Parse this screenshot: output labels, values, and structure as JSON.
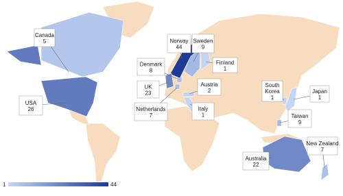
{
  "map": {
    "countries": [
      {
        "name": "Canada",
        "value": 5
      },
      {
        "name": "USA",
        "value": 26
      },
      {
        "name": "Denmark",
        "value": 8
      },
      {
        "name": "Norway",
        "value": 44
      },
      {
        "name": "Sweden",
        "value": 9
      },
      {
        "name": "Finland",
        "value": 1
      },
      {
        "name": "UK",
        "value": 23
      },
      {
        "name": "Austria",
        "value": 2
      },
      {
        "name": "Netherlands",
        "value": 7
      },
      {
        "name": "Italy",
        "value": 1
      },
      {
        "name": "South Korea",
        "value": 1
      },
      {
        "name": "Japan",
        "value": 1
      },
      {
        "name": "Taiwan",
        "value": 9
      },
      {
        "name": "New Zealand",
        "value": 7
      },
      {
        "name": "Australia",
        "value": 22
      }
    ],
    "legend": {
      "min": 1,
      "max": 44,
      "low_color": "#c3d6f5",
      "high_color": "#1c3a96"
    }
  }
}
